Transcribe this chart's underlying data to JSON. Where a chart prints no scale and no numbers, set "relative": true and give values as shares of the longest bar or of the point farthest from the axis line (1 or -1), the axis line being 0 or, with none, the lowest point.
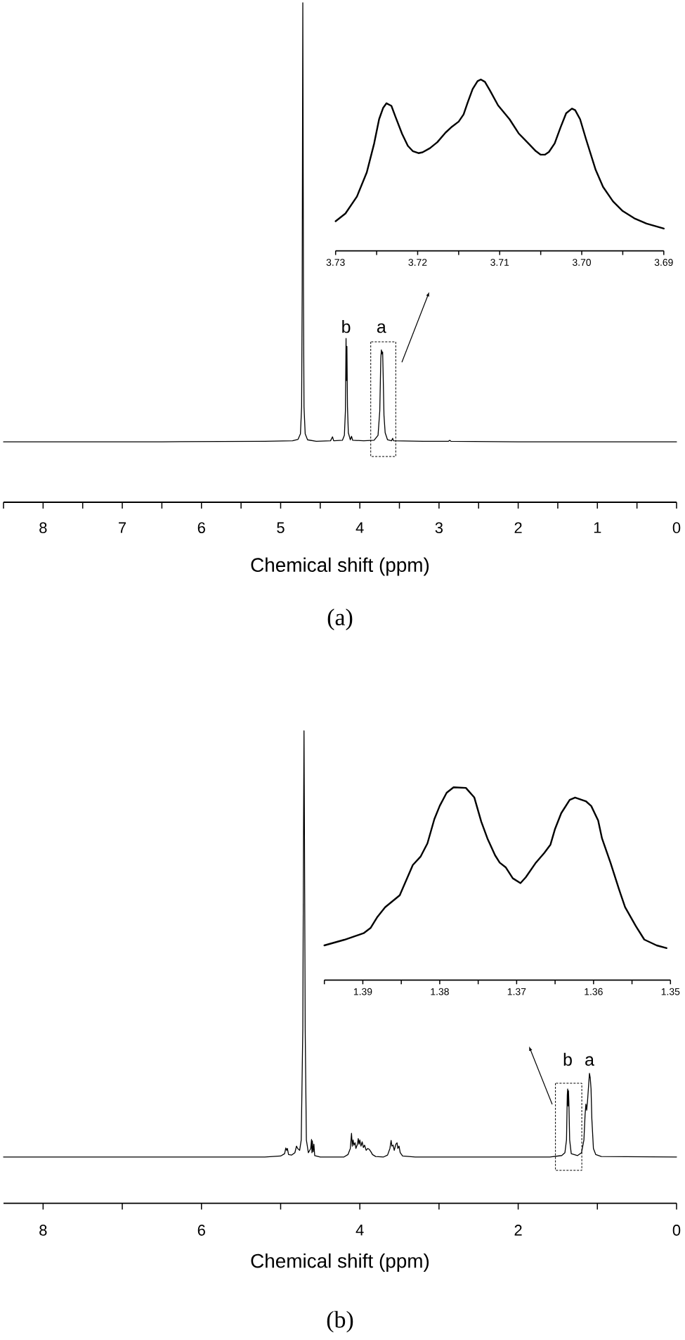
{
  "chart_data": [
    {
      "type": "line",
      "relative": true,
      "xlabel": "Chemical shift (ppm)",
      "color": "#000000",
      "xlim": [
        8.5,
        0
      ],
      "xticks": [
        {
          "value": 8.5,
          "label": null
        },
        8,
        {
          "value": 7.5,
          "label": null
        },
        7,
        {
          "value": 6.5,
          "label": null
        },
        6,
        {
          "value": 5.5,
          "label": null
        },
        5,
        {
          "value": 4.5,
          "label": null
        },
        4,
        {
          "value": 3.5,
          "label": null
        },
        3,
        {
          "value": 2.5,
          "label": null
        },
        2,
        {
          "value": 1.5,
          "label": null
        },
        1,
        {
          "value": 0.5,
          "label": null
        },
        0
      ],
      "x": [
        8.5,
        6.5,
        5.2,
        4.85,
        4.78,
        4.75,
        4.735,
        4.728,
        4.722,
        4.72,
        4.718,
        4.712,
        4.705,
        4.69,
        4.66,
        4.55,
        4.37,
        4.345,
        4.33,
        4.22,
        4.195,
        4.182,
        4.174,
        4.169,
        4.163,
        4.156,
        4.145,
        4.12,
        4.105,
        4.09,
        3.95,
        3.82,
        3.77,
        3.748,
        3.735,
        3.728,
        3.72,
        3.712,
        3.705,
        3.695,
        3.68,
        3.65,
        3.6,
        3.585,
        3.575,
        3.2,
        2.88,
        2.865,
        2.85,
        2.0,
        0
      ],
      "values": [
        0.121,
        0.121,
        0.122,
        0.123,
        0.126,
        0.137,
        0.191,
        0.429,
        0.868,
        1.0,
        0.868,
        0.429,
        0.191,
        0.137,
        0.125,
        0.122,
        0.123,
        0.131,
        0.123,
        0.124,
        0.134,
        0.183,
        0.328,
        0.244,
        0.312,
        0.191,
        0.139,
        0.125,
        0.132,
        0.124,
        0.123,
        0.124,
        0.134,
        0.183,
        0.288,
        0.305,
        0.297,
        0.301,
        0.253,
        0.174,
        0.139,
        0.125,
        0.123,
        0.128,
        0.123,
        0.122,
        0.122,
        0.124,
        0.122,
        0.121,
        0.121
      ],
      "annotations": [
        {
          "text": "b",
          "x": 4.174,
          "y": 0.328
        },
        {
          "text": "a",
          "x": 3.728,
          "y": 0.305
        },
        "(a)"
      ]
    },
    {
      "type": "line",
      "relative": true,
      "color": "#000000",
      "xlim": [
        3.73,
        3.69
      ],
      "xticks": [
        3.73,
        {
          "value": 3.725,
          "label": null
        },
        3.72,
        {
          "value": 3.715,
          "label": null
        },
        3.71,
        {
          "value": 3.705,
          "label": null
        },
        {
          "value": 3.7,
          "label": "3.70"
        },
        {
          "value": 3.695,
          "label": null
        },
        3.69
      ],
      "x": [
        3.73,
        3.7288,
        3.7274,
        3.7262,
        3.7253,
        3.7247,
        3.7242,
        3.7238,
        3.7232,
        3.7227,
        3.7219,
        3.7212,
        3.7206,
        3.7199,
        3.7194,
        3.7185,
        3.7176,
        3.7166,
        3.7158,
        3.715,
        3.7144,
        3.7139,
        3.7133,
        3.7127,
        3.7123,
        3.7118,
        3.7112,
        3.7102,
        3.7088,
        3.7077,
        3.7065,
        3.7056,
        3.705,
        3.7045,
        3.704,
        3.7033,
        3.7026,
        3.7019,
        3.7012,
        3.7008,
        3.7002,
        3.6995,
        3.6983,
        3.6974,
        3.6962,
        3.695,
        3.6936,
        3.6921,
        3.69
      ],
      "values": [
        0.173,
        0.218,
        0.317,
        0.458,
        0.627,
        0.768,
        0.835,
        0.861,
        0.846,
        0.782,
        0.683,
        0.613,
        0.582,
        0.57,
        0.575,
        0.599,
        0.634,
        0.69,
        0.725,
        0.754,
        0.796,
        0.866,
        0.944,
        0.99,
        1.0,
        0.986,
        0.937,
        0.849,
        0.768,
        0.686,
        0.627,
        0.582,
        0.561,
        0.561,
        0.577,
        0.627,
        0.718,
        0.803,
        0.83,
        0.821,
        0.768,
        0.655,
        0.472,
        0.373,
        0.289,
        0.232,
        0.19,
        0.159,
        0.13
      ]
    },
    {
      "type": "line",
      "relative": true,
      "xlabel": "Chemical shift (ppm)",
      "color": "#000000",
      "xlim": [
        8.5,
        0
      ],
      "xticks": [
        8,
        {
          "value": 7,
          "label": null
        },
        6,
        {
          "value": 5,
          "label": null
        },
        4,
        {
          "value": 3,
          "label": null
        },
        2,
        {
          "value": 1,
          "label": null
        },
        0
      ],
      "x": [
        8.5,
        5.2,
        5.0,
        4.95,
        4.935,
        4.925,
        4.915,
        4.9,
        4.86,
        4.82,
        4.8,
        4.785,
        4.76,
        4.74,
        4.72,
        4.71,
        4.705,
        4.7,
        4.69,
        4.675,
        4.65,
        4.62,
        4.61,
        4.605,
        4.6,
        4.59,
        4.58,
        4.57,
        4.5,
        4.2,
        4.15,
        4.12,
        4.105,
        4.095,
        4.085,
        4.075,
        4.06,
        4.05,
        4.03,
        4.02,
        4.01,
        4.0,
        3.985,
        3.97,
        3.955,
        3.94,
        3.92,
        3.9,
        3.88,
        3.86,
        3.84,
        3.8,
        3.7,
        3.65,
        3.62,
        3.605,
        3.595,
        3.58,
        3.565,
        3.545,
        3.53,
        3.52,
        3.505,
        3.49,
        3.46,
        3.3,
        1.6,
        1.45,
        1.41,
        1.39,
        1.38,
        1.375,
        1.37,
        1.365,
        1.36,
        1.35,
        1.33,
        1.25,
        1.2,
        1.17,
        1.155,
        1.145,
        1.135,
        1.125,
        1.11,
        1.1,
        1.09,
        1.08,
        1.07,
        1.05,
        1.02,
        0.95,
        0
      ],
      "values": [
        0.098,
        0.098,
        0.1,
        0.105,
        0.117,
        0.112,
        0.116,
        0.103,
        0.102,
        0.107,
        0.121,
        0.116,
        0.112,
        0.134,
        0.369,
        0.82,
        1.0,
        0.82,
        0.369,
        0.134,
        0.107,
        0.116,
        0.135,
        0.107,
        0.132,
        0.109,
        0.125,
        0.101,
        0.098,
        0.098,
        0.103,
        0.116,
        0.148,
        0.121,
        0.134,
        0.123,
        0.128,
        0.116,
        0.125,
        0.137,
        0.125,
        0.134,
        0.121,
        0.13,
        0.118,
        0.123,
        0.112,
        0.116,
        0.114,
        0.109,
        0.103,
        0.099,
        0.098,
        0.102,
        0.116,
        0.133,
        0.121,
        0.123,
        0.112,
        0.125,
        0.128,
        0.116,
        0.121,
        0.107,
        0.1,
        0.098,
        0.098,
        0.101,
        0.107,
        0.134,
        0.229,
        0.242,
        0.206,
        0.238,
        0.215,
        0.134,
        0.105,
        0.101,
        0.107,
        0.134,
        0.188,
        0.21,
        0.197,
        0.215,
        0.251,
        0.275,
        0.265,
        0.242,
        0.179,
        0.116,
        0.103,
        0.099,
        0.098
      ],
      "annotations": [
        {
          "text": "b",
          "x": 1.375,
          "y": 0.242
        },
        {
          "text": "a",
          "x": 1.1,
          "y": 0.275
        },
        "(b)"
      ]
    },
    {
      "type": "line",
      "relative": true,
      "color": "#000000",
      "xlim": [
        1.395,
        1.35
      ],
      "xticks": [
        {
          "value": 1.395,
          "label": null
        },
        1.39,
        {
          "value": 1.385,
          "label": null
        },
        1.38,
        {
          "value": 1.375,
          "label": null
        },
        1.37,
        {
          "value": 1.365,
          "label": null
        },
        1.36,
        {
          "value": 1.355,
          "label": null
        },
        1.35
      ],
      "x": [
        1.395,
        1.3924,
        1.3899,
        1.389,
        1.3881,
        1.3871,
        1.3852,
        1.3835,
        1.3825,
        1.3816,
        1.3807,
        1.38,
        1.3791,
        1.3782,
        1.3766,
        1.3755,
        1.3746,
        1.3738,
        1.3728,
        1.3722,
        1.3714,
        1.3705,
        1.3695,
        1.3688,
        1.3675,
        1.3664,
        1.3656,
        1.365,
        1.3642,
        1.3631,
        1.3624,
        1.361,
        1.3603,
        1.3594,
        1.3589,
        1.3578,
        1.3567,
        1.3559,
        1.3545,
        1.3534,
        1.3518,
        1.3505
      ],
      "values": [
        0.18,
        0.209,
        0.243,
        0.27,
        0.328,
        0.378,
        0.44,
        0.597,
        0.64,
        0.709,
        0.835,
        0.904,
        0.972,
        1.0,
        0.997,
        0.947,
        0.822,
        0.735,
        0.647,
        0.609,
        0.584,
        0.528,
        0.503,
        0.534,
        0.609,
        0.66,
        0.703,
        0.785,
        0.866,
        0.935,
        0.947,
        0.928,
        0.903,
        0.828,
        0.735,
        0.609,
        0.472,
        0.378,
        0.28,
        0.21,
        0.18,
        0.166
      ]
    }
  ]
}
